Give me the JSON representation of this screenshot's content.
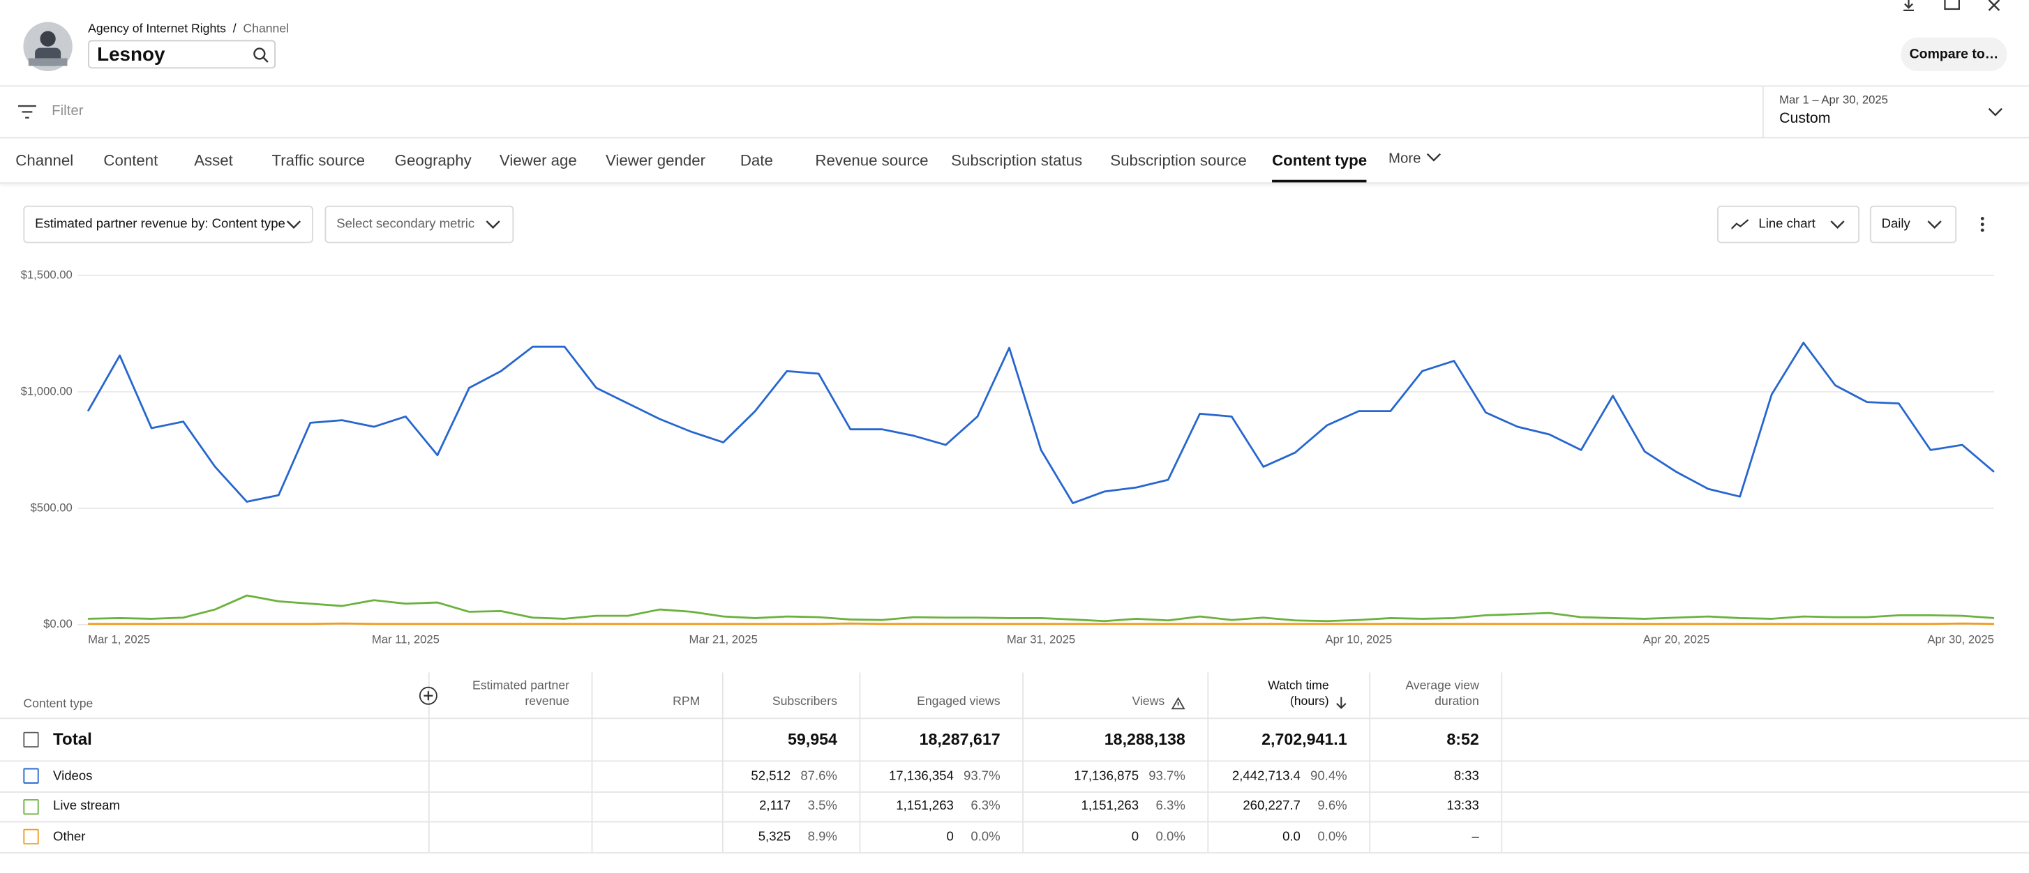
{
  "header": {
    "breadcrumb": [
      "Agency of Internet Rights",
      "Channel"
    ],
    "separator": "/",
    "channel": "Lesnoy",
    "compare_button": "Compare to…"
  },
  "filter": {
    "placeholder": "Filter",
    "date_range": "Mar 1 – Apr 30, 2025",
    "preset": "Custom"
  },
  "tabs": [
    {
      "label": "Channel",
      "selected": false
    },
    {
      "label": "Content",
      "selected": false
    },
    {
      "label": "Asset",
      "selected": false
    },
    {
      "label": "Traffic source",
      "selected": false
    },
    {
      "label": "Geography",
      "selected": false
    },
    {
      "label": "Viewer age",
      "selected": false
    },
    {
      "label": "Viewer gender",
      "selected": false
    },
    {
      "label": "Date",
      "selected": false
    },
    {
      "label": "Revenue source",
      "selected": false
    },
    {
      "label": "Subscription status",
      "selected": false
    },
    {
      "label": "Subscription source",
      "selected": false
    },
    {
      "label": "Content type",
      "selected": true
    }
  ],
  "more_tab": "More",
  "controls": {
    "primary_metric": "Estimated partner revenue by: Content type",
    "secondary_metric": "Select secondary metric",
    "chart_type": "Line chart",
    "granularity": "Daily"
  },
  "chart_data": {
    "type": "line",
    "categories": [
      "Mar 1, 2025",
      null,
      null,
      null,
      null,
      null,
      null,
      null,
      null,
      null,
      "Mar 11, 2025",
      null,
      null,
      null,
      null,
      null,
      null,
      null,
      null,
      null,
      "Mar 21, 2025",
      null,
      null,
      null,
      null,
      null,
      null,
      null,
      null,
      null,
      "Mar 31, 2025",
      null,
      null,
      null,
      null,
      null,
      null,
      null,
      null,
      null,
      "Apr 10, 2025",
      null,
      null,
      null,
      null,
      null,
      null,
      null,
      null,
      null,
      "Apr 20, 2025",
      null,
      null,
      null,
      null,
      null,
      null,
      null,
      null,
      null,
      "Apr 30, 2025"
    ],
    "series": [
      {
        "name": "Videos",
        "color": "#2566cf",
        "values": [
          917,
          1156,
          844,
          872,
          678,
          528,
          556,
          867,
          878,
          850,
          894,
          728,
          1017,
          1089,
          1194,
          1194,
          1017,
          950,
          883,
          828,
          783,
          917,
          1089,
          1078,
          839,
          839,
          811,
          772,
          894,
          1189,
          750,
          522,
          572,
          589,
          622,
          906,
          894,
          678,
          739,
          856,
          917,
          917,
          1089,
          1133,
          911,
          850,
          817,
          750,
          983,
          744,
          656,
          583,
          550,
          989,
          1211,
          1028,
          956,
          950,
          750,
          772,
          656
        ]
      },
      {
        "name": "Live stream",
        "color": "#6ab23c",
        "values": [
          25,
          28,
          25,
          30,
          65,
          125,
          100,
          90,
          80,
          105,
          90,
          95,
          55,
          58,
          30,
          25,
          38,
          38,
          65,
          55,
          35,
          28,
          35,
          32,
          22,
          20,
          32,
          30,
          30,
          28,
          28,
          22,
          15,
          25,
          18,
          35,
          20,
          30,
          18,
          15,
          20,
          28,
          25,
          28,
          40,
          45,
          50,
          32,
          28,
          25,
          30,
          35,
          28,
          25,
          35,
          32,
          32,
          40,
          40,
          38,
          28
        ]
      },
      {
        "name": "Other",
        "color": "#f09c1e",
        "values": [
          3,
          3,
          3,
          3,
          3,
          3,
          3,
          3,
          5,
          3,
          3,
          3,
          3,
          3,
          3,
          3,
          3,
          3,
          3,
          3,
          3,
          3,
          3,
          3,
          5,
          3,
          3,
          3,
          3,
          3,
          3,
          3,
          3,
          3,
          3,
          3,
          3,
          3,
          3,
          3,
          3,
          3,
          3,
          3,
          3,
          3,
          3,
          3,
          3,
          3,
          3,
          3,
          3,
          3,
          3,
          3,
          3,
          3,
          3,
          5,
          3
        ]
      }
    ],
    "ylim": [
      0,
      1500
    ],
    "yticks": [
      {
        "value": 0,
        "label": "$0.00"
      },
      {
        "value": 500,
        "label": "$500.00"
      },
      {
        "value": 1000,
        "label": "$1,000.00"
      },
      {
        "value": 1500,
        "label": "$1,500.00"
      }
    ],
    "grid": true
  },
  "table": {
    "columns": [
      "Content type",
      "Estimated partner revenue",
      "RPM",
      "Subscribers",
      "Engaged views",
      "Views",
      "Watch time (hours)",
      "Average view duration"
    ],
    "total": {
      "label": "Total",
      "cells": [
        null,
        null,
        "59,954",
        "18,287,617",
        "18,288,138",
        "2,702,941.1",
        "8:52"
      ]
    },
    "rows": [
      {
        "cells": [
          null,
          null,
          {
            "value": "52,512",
            "share": "87.6%"
          },
          {
            "value": "17,136,354",
            "share": "93.7%"
          },
          {
            "value": "17,136,875",
            "share": "93.7%"
          },
          {
            "value": "2,442,713.4",
            "share": "90.4%"
          },
          "8:33"
        ]
      },
      {
        "cells": [
          null,
          null,
          {
            "value": "2,117",
            "share": "3.5%"
          },
          {
            "value": "1,151,263",
            "share": "6.3%"
          },
          {
            "value": "1,151,263",
            "share": "6.3%"
          },
          {
            "value": "260,227.7",
            "share": "9.6%"
          },
          "13:33"
        ]
      },
      {
        "cells": [
          null,
          null,
          {
            "value": "5,325",
            "share": "8.9%"
          },
          {
            "value": "0",
            "share": "0.0%"
          },
          {
            "value": "0",
            "share": "0.0%"
          },
          {
            "value": "0.0",
            "share": "0.0%"
          },
          "–"
        ]
      }
    ]
  }
}
